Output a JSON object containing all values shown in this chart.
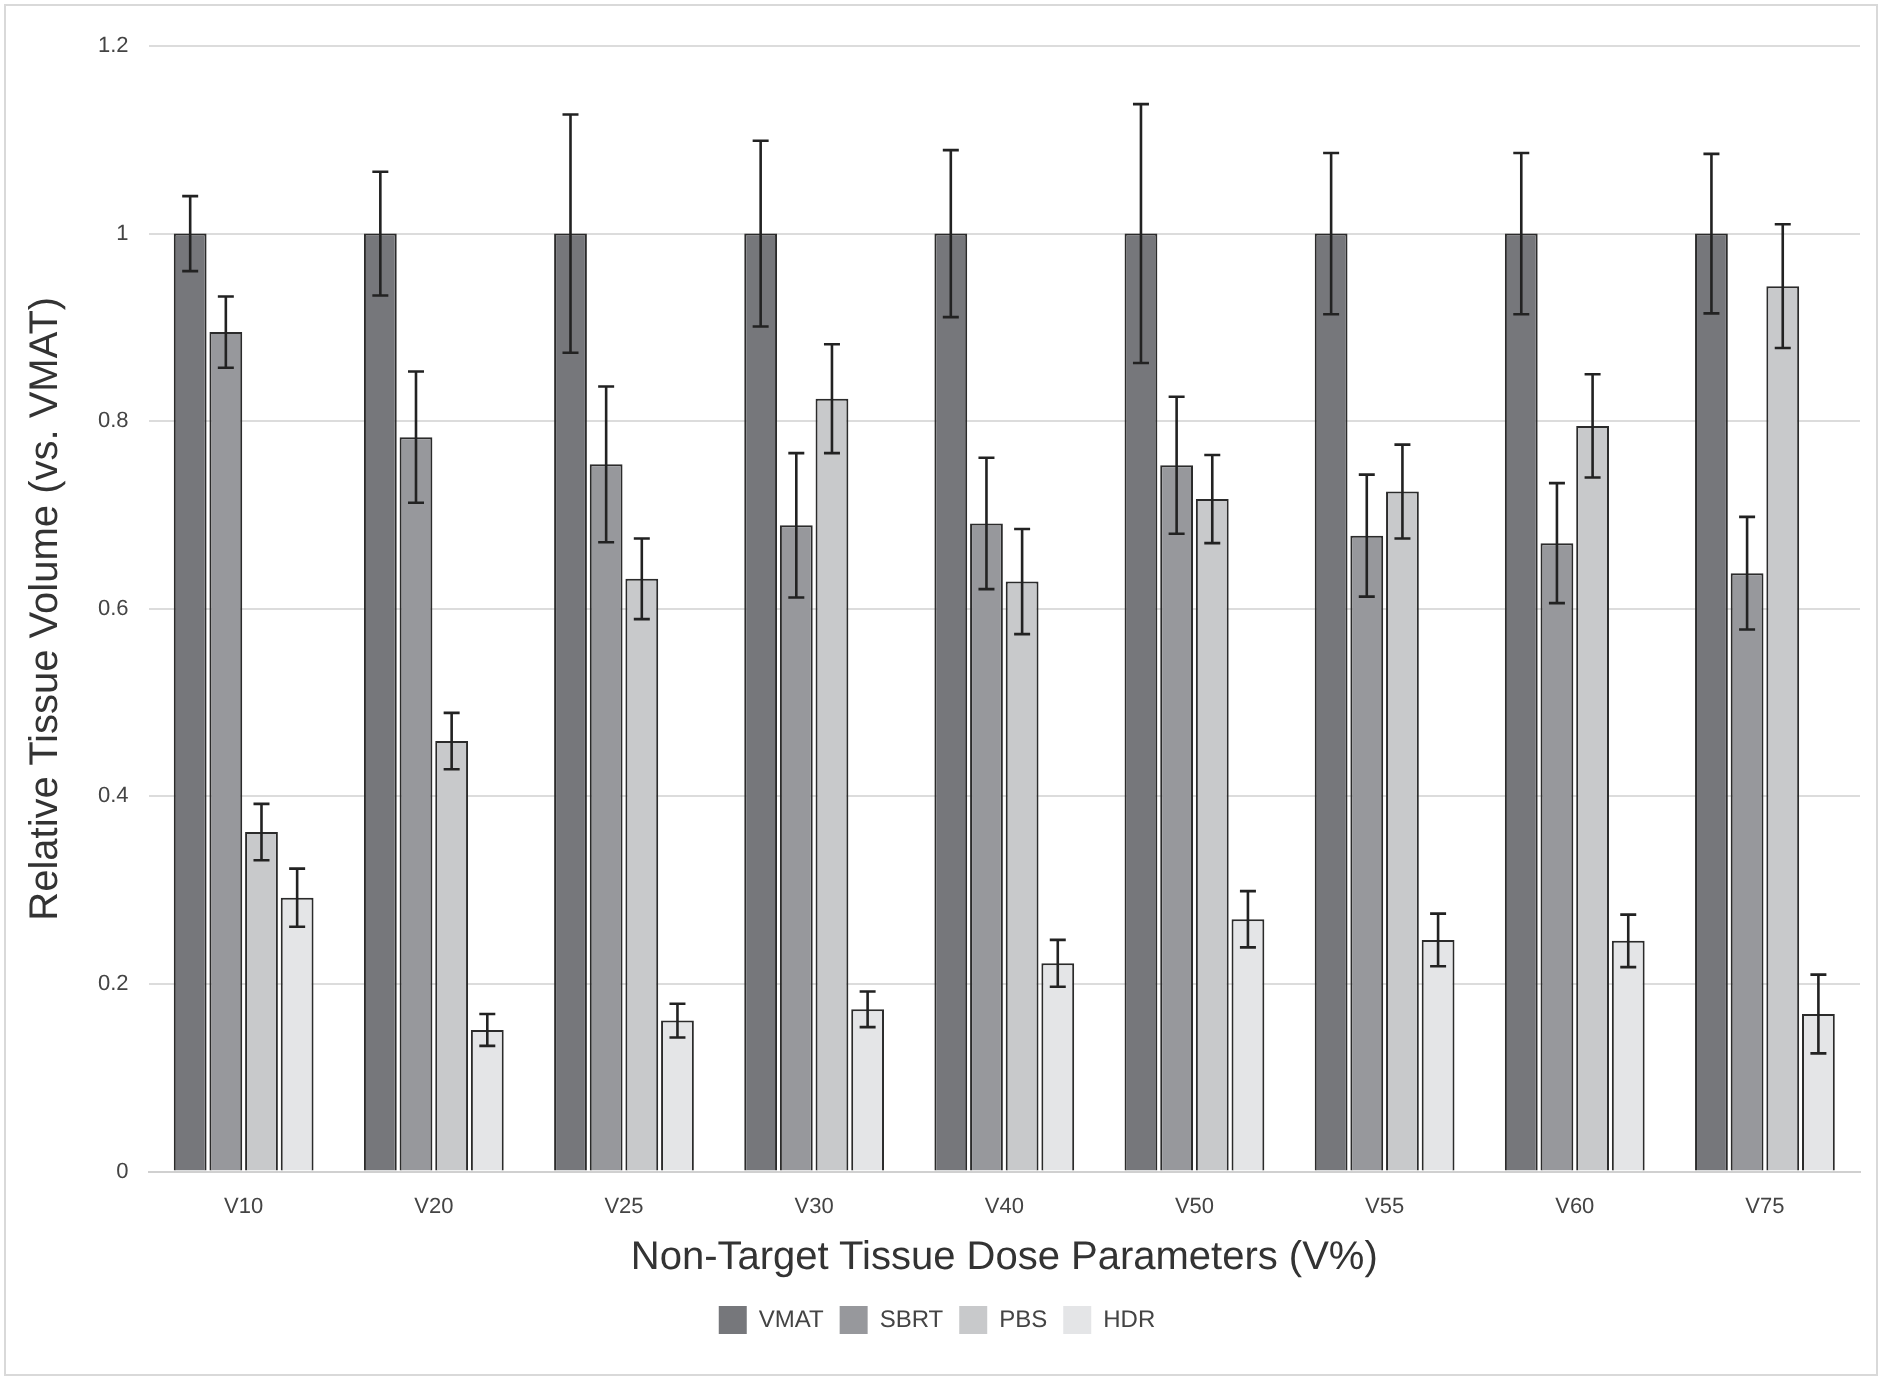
{
  "chart_data": {
    "type": "bar",
    "xlabel": "Non-Target Tissue Dose Parameters (V%)",
    "ylabel": "Relative Tissue Volume (vs. VMAT)",
    "categories": [
      "V10",
      "V20",
      "V25",
      "V30",
      "V40",
      "V50",
      "V55",
      "V60",
      "V75"
    ],
    "series": [
      {
        "name": "VMAT",
        "color": "#76777b",
        "values": [
          1,
          1,
          1,
          1,
          1,
          1,
          1,
          1,
          1
        ],
        "errors": [
          0.04,
          0.066,
          0.127,
          0.099,
          0.089,
          0.138,
          0.086,
          0.086,
          0.085
        ]
      },
      {
        "name": "SBRT",
        "color": "#97989c",
        "values": [
          0.895,
          0.783,
          0.754,
          0.689,
          0.691,
          0.753,
          0.678,
          0.67,
          0.638
        ],
        "errors": [
          0.038,
          0.07,
          0.083,
          0.077,
          0.07,
          0.073,
          0.065,
          0.064,
          0.06
        ]
      },
      {
        "name": "PBS",
        "color": "#c8c9cb",
        "values": [
          0.362,
          0.459,
          0.632,
          0.824,
          0.629,
          0.717,
          0.725,
          0.795,
          0.944
        ],
        "errors": [
          0.03,
          0.03,
          0.043,
          0.058,
          0.056,
          0.047,
          0.05,
          0.055,
          0.066
        ]
      },
      {
        "name": "HDR",
        "color": "#e4e5e7",
        "values": [
          0.292,
          0.151,
          0.161,
          0.173,
          0.222,
          0.269,
          0.247,
          0.246,
          0.168
        ],
        "errors": [
          0.031,
          0.017,
          0.018,
          0.019,
          0.025,
          0.03,
          0.028,
          0.028,
          0.042
        ]
      }
    ],
    "ylim": [
      0,
      1.2
    ],
    "yticks": [
      0,
      0.2,
      0.4,
      0.6,
      0.8,
      1,
      1.2
    ],
    "grid": "y",
    "legend": "bottom"
  }
}
